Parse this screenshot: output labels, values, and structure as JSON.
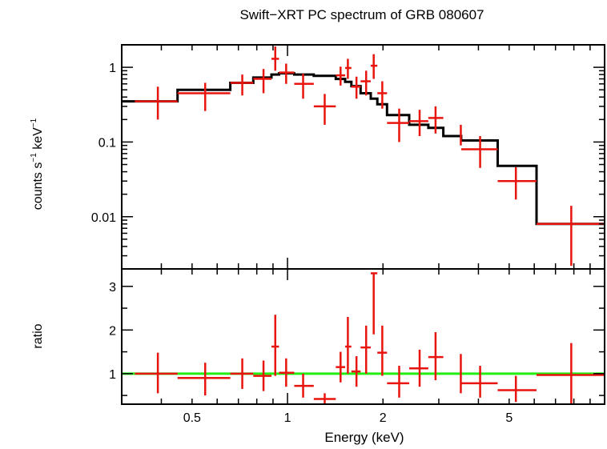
{
  "chart_data": [
    {
      "type": "scatter",
      "panel": "spectrum",
      "title": "Swift−XRT PC spectrum of GRB 080607",
      "ylabel_main": "counts s",
      "ylabel_exp1": "−1",
      "ylabel_mid": " keV",
      "ylabel_exp2": "−1",
      "xscale": "log",
      "yscale": "log",
      "xlim": [
        0.3,
        10
      ],
      "ylim": [
        0.002,
        2
      ],
      "ytick_values": [
        0.01,
        0.1,
        1
      ],
      "ytick_labels": [
        "0.01",
        "0.1",
        "1"
      ],
      "data": [
        {
          "x": 0.39,
          "xerr": [
            0.33,
            0.45
          ],
          "y": 0.35,
          "yerr": [
            0.2,
            0.55
          ]
        },
        {
          "x": 0.55,
          "xerr": [
            0.45,
            0.66
          ],
          "y": 0.45,
          "yerr": [
            0.26,
            0.62
          ]
        },
        {
          "x": 0.72,
          "xerr": [
            0.66,
            0.78
          ],
          "y": 0.62,
          "yerr": [
            0.42,
            0.8
          ]
        },
        {
          "x": 0.84,
          "xerr": [
            0.78,
            0.89
          ],
          "y": 0.7,
          "yerr": [
            0.45,
            0.95
          ]
        },
        {
          "x": 0.915,
          "xerr": [
            0.89,
            0.94
          ],
          "y": 1.3,
          "yerr": [
            0.9,
            1.9
          ]
        },
        {
          "x": 0.99,
          "xerr": [
            0.94,
            1.05
          ],
          "y": 0.85,
          "yerr": [
            0.6,
            1.12
          ]
        },
        {
          "x": 1.12,
          "xerr": [
            1.05,
            1.21
          ],
          "y": 0.6,
          "yerr": [
            0.38,
            0.82
          ]
        },
        {
          "x": 1.31,
          "xerr": [
            1.21,
            1.42
          ],
          "y": 0.3,
          "yerr": [
            0.17,
            0.44
          ]
        },
        {
          "x": 1.47,
          "xerr": [
            1.42,
            1.52
          ],
          "y": 0.78,
          "yerr": [
            0.57,
            1.02
          ]
        },
        {
          "x": 1.55,
          "xerr": [
            1.52,
            1.59
          ],
          "y": 0.98,
          "yerr": [
            0.7,
            1.3
          ]
        },
        {
          "x": 1.65,
          "xerr": [
            1.59,
            1.7
          ],
          "y": 0.55,
          "yerr": [
            0.38,
            0.75
          ]
        },
        {
          "x": 1.77,
          "xerr": [
            1.7,
            1.83
          ],
          "y": 0.65,
          "yerr": [
            0.42,
            0.9
          ]
        },
        {
          "x": 1.87,
          "xerr": [
            1.83,
            1.92
          ],
          "y": 1.05,
          "yerr": [
            0.7,
            1.5
          ]
        },
        {
          "x": 1.99,
          "xerr": [
            1.92,
            2.06
          ],
          "y": 0.45,
          "yerr": [
            0.28,
            0.65
          ]
        },
        {
          "x": 2.25,
          "xerr": [
            2.06,
            2.42
          ],
          "y": 0.18,
          "yerr": [
            0.1,
            0.28
          ]
        },
        {
          "x": 2.61,
          "xerr": [
            2.42,
            2.78
          ],
          "y": 0.19,
          "yerr": [
            0.12,
            0.27
          ]
        },
        {
          "x": 2.93,
          "xerr": [
            2.78,
            3.1
          ],
          "y": 0.21,
          "yerr": [
            0.13,
            0.3
          ]
        },
        {
          "x": 3.52,
          "xerr": [
            3.1,
            3.93
          ],
          "y": null,
          "yerr": [
            0.09,
            0.17
          ]
        },
        {
          "x": 4.05,
          "xerr": [
            3.53,
            4.6
          ],
          "y": 0.08,
          "yerr": [
            0.045,
            0.12
          ]
        },
        {
          "x": 5.25,
          "xerr": [
            4.6,
            6.1
          ],
          "y": 0.03,
          "yerr": [
            0.017,
            0.046
          ]
        },
        {
          "x": 7.85,
          "xerr": [
            6.1,
            10.0
          ],
          "y": 0.008,
          "yerr": [
            0.0022,
            0.014
          ]
        }
      ],
      "model_steps": [
        {
          "x0": 0.3,
          "x1": 0.45,
          "y": 0.35
        },
        {
          "x0": 0.45,
          "x1": 0.66,
          "y": 0.5
        },
        {
          "x0": 0.66,
          "x1": 0.78,
          "y": 0.62
        },
        {
          "x0": 0.78,
          "x1": 0.89,
          "y": 0.73
        },
        {
          "x0": 0.89,
          "x1": 0.94,
          "y": 0.8
        },
        {
          "x0": 0.94,
          "x1": 1.05,
          "y": 0.83
        },
        {
          "x0": 1.05,
          "x1": 1.21,
          "y": 0.8
        },
        {
          "x0": 1.21,
          "x1": 1.42,
          "y": 0.77
        },
        {
          "x0": 1.42,
          "x1": 1.52,
          "y": 0.7
        },
        {
          "x0": 1.52,
          "x1": 1.59,
          "y": 0.64
        },
        {
          "x0": 1.59,
          "x1": 1.7,
          "y": 0.56
        },
        {
          "x0": 1.7,
          "x1": 1.83,
          "y": 0.45
        },
        {
          "x0": 1.83,
          "x1": 1.92,
          "y": 0.38
        },
        {
          "x0": 1.92,
          "x1": 2.06,
          "y": 0.32
        },
        {
          "x0": 2.06,
          "x1": 2.42,
          "y": 0.23
        },
        {
          "x0": 2.42,
          "x1": 2.78,
          "y": 0.17
        },
        {
          "x0": 2.78,
          "x1": 3.1,
          "y": 0.155
        },
        {
          "x0": 3.1,
          "x1": 3.53,
          "y": 0.12
        },
        {
          "x0": 3.53,
          "x1": 4.6,
          "y": 0.105
        },
        {
          "x0": 4.6,
          "x1": 6.1,
          "y": 0.048
        },
        {
          "x0": 6.1,
          "x1": 10.0,
          "y": 0.008
        }
      ]
    },
    {
      "type": "scatter",
      "panel": "ratio",
      "xlabel": "Energy (keV)",
      "ylabel": "ratio",
      "xscale": "log",
      "xlim": [
        0.3,
        10
      ],
      "ylim": [
        0.3,
        3.4
      ],
      "ytick_values": [
        1,
        2,
        3
      ],
      "ytick_labels": [
        "1",
        "2",
        "3"
      ],
      "xtick_values": [
        0.5,
        1,
        2,
        5
      ],
      "xtick_labels": [
        "0.5",
        "1",
        "2",
        "5"
      ],
      "reference_line": 1.0,
      "data": [
        {
          "x": 0.39,
          "xerr": [
            0.33,
            0.45
          ],
          "y": 1.0,
          "yerr": [
            0.55,
            1.48
          ]
        },
        {
          "x": 0.55,
          "xerr": [
            0.45,
            0.66
          ],
          "y": 0.9,
          "yerr": [
            0.5,
            1.25
          ]
        },
        {
          "x": 0.72,
          "xerr": [
            0.66,
            0.78
          ],
          "y": 1.0,
          "yerr": [
            0.65,
            1.35
          ]
        },
        {
          "x": 0.84,
          "xerr": [
            0.78,
            0.89
          ],
          "y": 0.95,
          "yerr": [
            0.6,
            1.3
          ]
        },
        {
          "x": 0.915,
          "xerr": [
            0.89,
            0.94
          ],
          "y": 1.62,
          "yerr": [
            0.95,
            2.35
          ]
        },
        {
          "x": 0.99,
          "xerr": [
            0.94,
            1.05
          ],
          "y": 1.02,
          "yerr": [
            0.7,
            1.35
          ]
        },
        {
          "x": 1.12,
          "xerr": [
            1.05,
            1.21
          ],
          "y": 0.72,
          "yerr": [
            0.45,
            1.0
          ]
        },
        {
          "x": 1.31,
          "xerr": [
            1.21,
            1.42
          ],
          "y": 0.42,
          "yerr": [
            0.3,
            0.55
          ]
        },
        {
          "x": 1.47,
          "xerr": [
            1.42,
            1.52
          ],
          "y": 1.15,
          "yerr": [
            0.8,
            1.5
          ]
        },
        {
          "x": 1.55,
          "xerr": [
            1.52,
            1.59
          ],
          "y": 1.62,
          "yerr": [
            1.0,
            2.3
          ]
        },
        {
          "x": 1.65,
          "xerr": [
            1.59,
            1.7
          ],
          "y": 1.05,
          "yerr": [
            0.7,
            1.4
          ]
        },
        {
          "x": 1.77,
          "xerr": [
            1.7,
            1.83
          ],
          "y": 1.6,
          "yerr": [
            1.0,
            2.1
          ]
        },
        {
          "x": 1.87,
          "xerr": [
            1.83,
            1.92
          ],
          "y": 3.3,
          "yerr": [
            1.9,
            3.3
          ]
        },
        {
          "x": 1.99,
          "xerr": [
            1.92,
            2.06
          ],
          "y": 1.48,
          "yerr": [
            0.95,
            2.1
          ]
        },
        {
          "x": 2.25,
          "xerr": [
            2.06,
            2.42
          ],
          "y": 0.78,
          "yerr": [
            0.45,
            1.18
          ]
        },
        {
          "x": 2.61,
          "xerr": [
            2.42,
            2.78
          ],
          "y": 1.12,
          "yerr": [
            0.7,
            1.55
          ]
        },
        {
          "x": 2.93,
          "xerr": [
            2.78,
            3.1
          ],
          "y": 1.38,
          "yerr": [
            0.85,
            1.95
          ]
        },
        {
          "x": 3.52,
          "xerr": [
            3.1,
            3.93
          ],
          "y": null,
          "yerr": [
            0.55,
            1.45
          ]
        },
        {
          "x": 4.05,
          "xerr": [
            3.53,
            4.6
          ],
          "y": 0.78,
          "yerr": [
            0.45,
            1.18
          ]
        },
        {
          "x": 5.25,
          "xerr": [
            4.6,
            6.1
          ],
          "y": 0.62,
          "yerr": [
            0.35,
            0.95
          ]
        },
        {
          "x": 7.85,
          "xerr": [
            6.1,
            10.0
          ],
          "y": 0.97,
          "yerr": [
            0.3,
            1.7
          ]
        }
      ]
    }
  ],
  "colors": {
    "data": "#e8140e",
    "model": "#000000",
    "reference": "#22ee11",
    "axes": "#000000"
  }
}
